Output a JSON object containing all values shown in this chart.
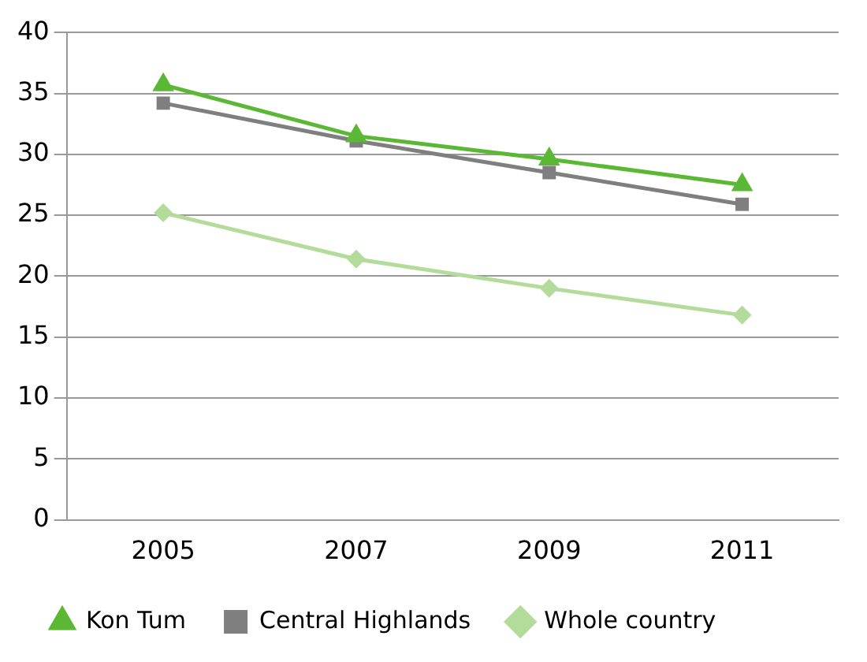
{
  "chart_data": {
    "type": "line",
    "categories": [
      "2005",
      "2007",
      "2009",
      "2011"
    ],
    "series": [
      {
        "name": "Whole country",
        "color": "#b3dc9a",
        "marker": "diamond",
        "values": [
          25.2,
          21.4,
          19.0,
          16.8
        ]
      },
      {
        "name": "Central Highlands",
        "color": "#7f7f7f",
        "marker": "square",
        "values": [
          34.2,
          31.1,
          28.5,
          25.9
        ]
      },
      {
        "name": "Kon Tum",
        "color": "#5bb834",
        "marker": "triangle",
        "values": [
          35.7,
          31.5,
          29.6,
          27.5
        ]
      }
    ],
    "ylim": [
      0,
      40
    ],
    "yticks": [
      0,
      5,
      10,
      15,
      20,
      25,
      30,
      35,
      40
    ],
    "grid": "y",
    "legend": "bottom",
    "line_style": "solid"
  }
}
